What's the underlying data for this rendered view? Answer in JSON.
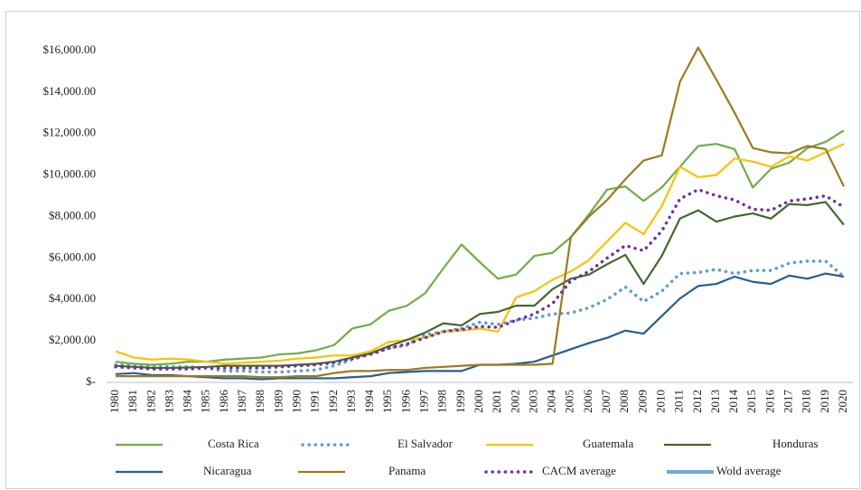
{
  "chart_data": {
    "type": "line",
    "x": [
      1980,
      1981,
      1982,
      1983,
      1984,
      1985,
      1986,
      1987,
      1988,
      1989,
      1990,
      1991,
      1992,
      1993,
      1994,
      1995,
      1996,
      1997,
      1998,
      1999,
      2000,
      2001,
      2002,
      2003,
      2004,
      2005,
      2006,
      2007,
      2008,
      2009,
      2010,
      2011,
      2012,
      2013,
      2014,
      2015,
      2016,
      2017,
      2018,
      2019,
      2020
    ],
    "xlim": [
      1980,
      2020
    ],
    "ylim": [
      0,
      16000
    ],
    "yticks": [
      {
        "value": 0,
        "label": "$-"
      },
      {
        "value": 2000,
        "label": "$2,000.00"
      },
      {
        "value": 4000,
        "label": "$4,000.00"
      },
      {
        "value": 6000,
        "label": "$6,000.00"
      },
      {
        "value": 8000,
        "label": "$8,000.00"
      },
      {
        "value": 10000,
        "label": "$10,000.00"
      },
      {
        "value": 12000,
        "label": "$12,000.00"
      },
      {
        "value": 14000,
        "label": "$14,000.00"
      },
      {
        "value": 16000,
        "label": "$16,000.00"
      }
    ],
    "grid": false,
    "legend": "bottom",
    "series": [
      {
        "name": "Costa Rica",
        "color": "#70ad47",
        "style": "solid",
        "values": [
          1000,
          900,
          850,
          900,
          1000,
          1000,
          1100,
          1150,
          1200,
          1350,
          1400,
          1550,
          1800,
          2600,
          2800,
          3450,
          3700,
          4300,
          5500,
          6650,
          5800,
          5000,
          5200,
          6100,
          6250,
          7000,
          8100,
          9300,
          9450,
          8750,
          9400,
          10400,
          11400,
          11500,
          11250,
          9400,
          10300,
          10600,
          11300,
          11600,
          12150
        ]
      },
      {
        "name": "El Salvador",
        "color": "#5b9bd5",
        "style": "dotted",
        "values": [
          850,
          800,
          750,
          750,
          750,
          700,
          550,
          550,
          500,
          500,
          550,
          600,
          800,
          1100,
          1400,
          1650,
          1800,
          2300,
          2450,
          2600,
          2900,
          2800,
          3000,
          3100,
          3300,
          3350,
          3600,
          4000,
          4600,
          3900,
          4400,
          5250,
          5300,
          5450,
          5250,
          5400,
          5400,
          5750,
          5850,
          5850,
          5100
        ]
      },
      {
        "name": "Guatemala",
        "color": "#ffc000",
        "style": "solid",
        "values": [
          1500,
          1200,
          1100,
          1150,
          1100,
          1000,
          900,
          950,
          1000,
          1050,
          1150,
          1200,
          1300,
          1300,
          1500,
          1950,
          2050,
          2150,
          2450,
          2500,
          2600,
          2450,
          4100,
          4400,
          4950,
          5350,
          5900,
          6800,
          7700,
          7150,
          8500,
          10400,
          9900,
          10000,
          10800,
          10650,
          10400,
          10900,
          10700,
          11100,
          11500
        ]
      },
      {
        "name": "Honduras",
        "color": "#43682b",
        "style": "solid",
        "values": [
          800,
          750,
          700,
          700,
          720,
          750,
          800,
          800,
          800,
          800,
          850,
          900,
          1000,
          1200,
          1400,
          1750,
          2050,
          2400,
          2850,
          2750,
          3300,
          3400,
          3700,
          3700,
          4500,
          5000,
          5200,
          5700,
          6150,
          4750,
          6100,
          7900,
          8300,
          7750,
          8000,
          8150,
          7900,
          8600,
          8550,
          8700,
          7600
        ]
      },
      {
        "name": "Nicaragua",
        "color": "#255e91",
        "style": "solid",
        "values": [
          400,
          450,
          350,
          350,
          300,
          250,
          200,
          200,
          150,
          200,
          200,
          200,
          200,
          250,
          300,
          450,
          500,
          550,
          550,
          550,
          850,
          850,
          900,
          1000,
          1300,
          1600,
          1900,
          2150,
          2500,
          2350,
          3200,
          4050,
          4650,
          4750,
          5100,
          4850,
          4750,
          5150,
          5000,
          5250,
          5100
        ]
      },
      {
        "name": "Panama",
        "color": "#9c7a1e",
        "style": "solid",
        "values": [
          300,
          300,
          300,
          300,
          300,
          300,
          300,
          300,
          250,
          250,
          300,
          300,
          450,
          550,
          550,
          600,
          600,
          700,
          750,
          800,
          850,
          850,
          850,
          850,
          900,
          7000,
          8000,
          8800,
          9800,
          10700,
          10950,
          14500,
          16150,
          14600,
          13000,
          11300,
          11100,
          11050,
          11400,
          11250,
          9450
        ]
      },
      {
        "name": "CACM average",
        "color": "#7030a0",
        "style": "dotted",
        "values": [
          750,
          700,
          650,
          650,
          650,
          700,
          700,
          700,
          700,
          750,
          800,
          850,
          950,
          1150,
          1350,
          1650,
          1850,
          2150,
          2450,
          2550,
          2700,
          2650,
          3000,
          3300,
          3800,
          4900,
          5350,
          6000,
          6600,
          6350,
          7300,
          8850,
          9300,
          9000,
          8800,
          8350,
          8300,
          8750,
          8850,
          9000,
          8450
        ]
      },
      {
        "name": "Wold average",
        "color": "#6fa8dc",
        "style": "thick",
        "values": [
          null,
          null,
          null,
          null,
          null,
          null,
          null,
          null,
          null,
          null,
          null,
          null,
          null,
          null,
          null,
          null,
          null,
          null,
          null,
          null,
          null,
          null,
          null,
          null,
          null,
          null,
          null,
          null,
          null,
          null,
          null,
          null,
          null,
          null,
          null,
          null,
          null,
          null,
          null,
          null,
          null
        ]
      }
    ]
  }
}
